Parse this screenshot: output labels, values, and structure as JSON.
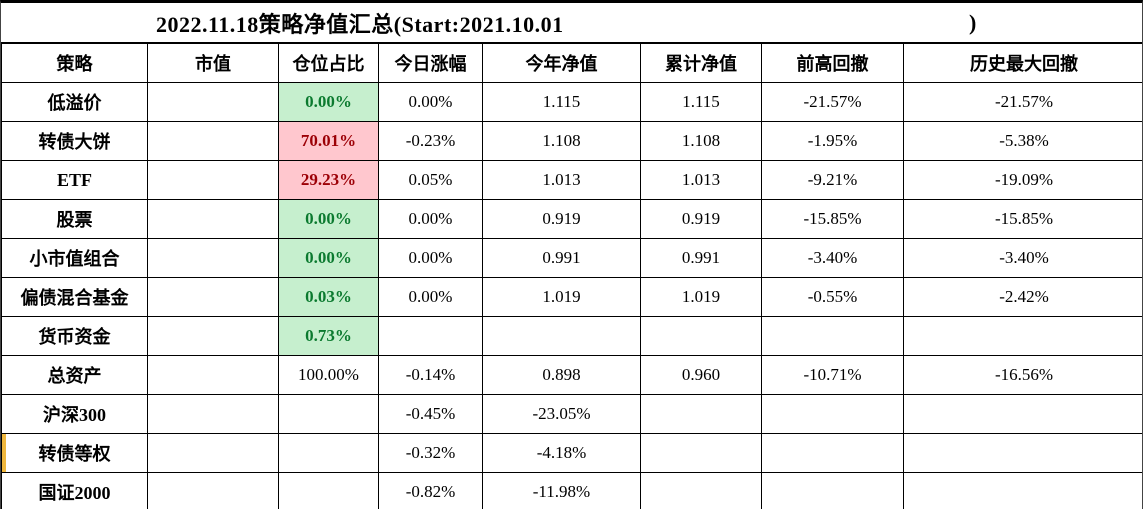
{
  "title": {
    "text": "2022.11.18策略净值汇总(Start:2021.10.01",
    "closing_paren": ")"
  },
  "columns": [
    "策略",
    "市值",
    "仓位占比",
    "今日涨幅",
    "今年净值",
    "累计净值",
    "前高回撤",
    "历史最大回撤"
  ],
  "rows": [
    {
      "strategy": "低溢价",
      "market_value": "",
      "position": "0.00%",
      "position_style": "green",
      "today_change": "0.00%",
      "ytd_nav": "1.115",
      "cumulative_nav": "1.115",
      "drawdown_from_prev_high": "-21.57%",
      "max_drawdown": "-21.57%",
      "left_marker": false
    },
    {
      "strategy": "转债大饼",
      "market_value": "",
      "position": "70.01%",
      "position_style": "red",
      "today_change": "-0.23%",
      "ytd_nav": "1.108",
      "cumulative_nav": "1.108",
      "drawdown_from_prev_high": "-1.95%",
      "max_drawdown": "-5.38%",
      "left_marker": false
    },
    {
      "strategy": "ETF",
      "market_value": "",
      "position": "29.23%",
      "position_style": "red",
      "today_change": "0.05%",
      "ytd_nav": "1.013",
      "cumulative_nav": "1.013",
      "drawdown_from_prev_high": "-9.21%",
      "max_drawdown": "-19.09%",
      "left_marker": false
    },
    {
      "strategy": "股票",
      "market_value": "",
      "position": "0.00%",
      "position_style": "green",
      "today_change": "0.00%",
      "ytd_nav": "0.919",
      "cumulative_nav": "0.919",
      "drawdown_from_prev_high": "-15.85%",
      "max_drawdown": "-15.85%",
      "left_marker": false
    },
    {
      "strategy": "小市值组合",
      "market_value": "",
      "position": "0.00%",
      "position_style": "green",
      "today_change": "0.00%",
      "ytd_nav": "0.991",
      "cumulative_nav": "0.991",
      "drawdown_from_prev_high": "-3.40%",
      "max_drawdown": "-3.40%",
      "left_marker": false
    },
    {
      "strategy": "偏债混合基金",
      "market_value": "",
      "position": "0.03%",
      "position_style": "green",
      "today_change": "0.00%",
      "ytd_nav": "1.019",
      "cumulative_nav": "1.019",
      "drawdown_from_prev_high": "-0.55%",
      "max_drawdown": "-2.42%",
      "left_marker": false
    },
    {
      "strategy": "货币资金",
      "market_value": "",
      "position": "0.73%",
      "position_style": "green",
      "today_change": "",
      "ytd_nav": "",
      "cumulative_nav": "",
      "drawdown_from_prev_high": "",
      "max_drawdown": "",
      "left_marker": false
    },
    {
      "strategy": "总资产",
      "market_value": "",
      "position": "100.00%",
      "position_style": "none",
      "today_change": "-0.14%",
      "ytd_nav": "0.898",
      "cumulative_nav": "0.960",
      "drawdown_from_prev_high": "-10.71%",
      "max_drawdown": "-16.56%",
      "left_marker": false
    },
    {
      "strategy": "沪深300",
      "market_value": "",
      "position": "",
      "position_style": "none",
      "today_change": "-0.45%",
      "ytd_nav": "-23.05%",
      "cumulative_nav": "",
      "drawdown_from_prev_high": "",
      "max_drawdown": "",
      "left_marker": false
    },
    {
      "strategy": "转债等权",
      "market_value": "",
      "position": "",
      "position_style": "none",
      "today_change": "-0.32%",
      "ytd_nav": "-4.18%",
      "cumulative_nav": "",
      "drawdown_from_prev_high": "",
      "max_drawdown": "",
      "left_marker": true
    },
    {
      "strategy": "国证2000",
      "market_value": "",
      "position": "",
      "position_style": "none",
      "today_change": "-0.82%",
      "ytd_nav": "-11.98%",
      "cumulative_nav": "",
      "drawdown_from_prev_high": "",
      "max_drawdown": "",
      "left_marker": false
    }
  ],
  "colors": {
    "positive_fill": "#c6efce",
    "positive_text": "#0b7a2f",
    "negative_fill": "#ffc7ce",
    "negative_text": "#9c0006",
    "row_marker": "#efb73e",
    "grid": "#000000"
  }
}
